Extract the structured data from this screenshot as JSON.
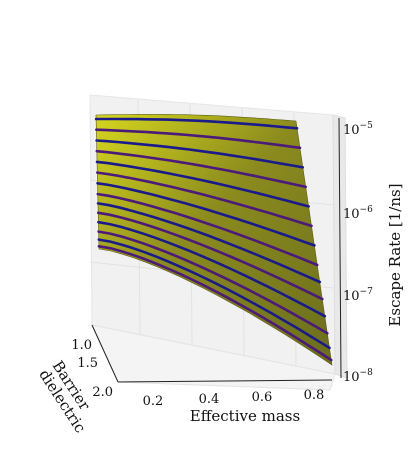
{
  "chart_data": {
    "type": "surface3d",
    "title": "",
    "xlabel": "Effective mass",
    "ylabel": "Barrier dielectric",
    "zlabel": "Escape Rate [1/ns]",
    "z_scale": "log",
    "x_range": [
      0.1,
      0.9
    ],
    "y_range": [
      1.0,
      2.0
    ],
    "z_range": [
      1e-08,
      1e-05
    ],
    "x_ticks": [
      "0.2",
      "0.4",
      "0.6",
      "0.8"
    ],
    "y_ticks": [
      "1.0",
      "1.5",
      "2.0"
    ],
    "z_ticks": [
      {
        "base": "10",
        "exp": "−5"
      },
      {
        "base": "10",
        "exp": "−6"
      },
      {
        "base": "10",
        "exp": "−7"
      },
      {
        "base": "10",
        "exp": "−8"
      }
    ],
    "grid": true,
    "surface_colors": [
      "#d6d61e",
      "#8a8a1e",
      "#6b6e1c"
    ],
    "line_colors": [
      "#1a1a8c",
      "#4b1a7a"
    ],
    "num_mass_curves": 14,
    "curve_positions": [
      0.03,
      0.11,
      0.19,
      0.27,
      0.35,
      0.43,
      0.51,
      0.59,
      0.66,
      0.73,
      0.8,
      0.87,
      0.93,
      0.98
    ]
  }
}
